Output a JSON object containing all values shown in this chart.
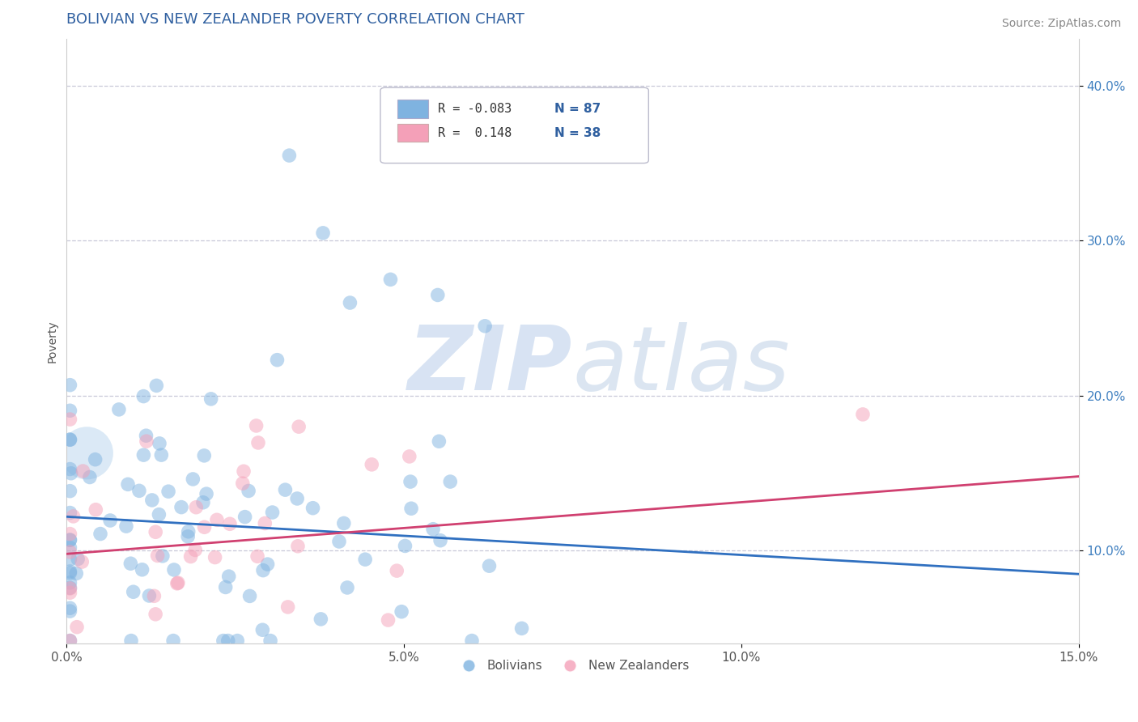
{
  "title": "BOLIVIAN VS NEW ZEALANDER POVERTY CORRELATION CHART",
  "source_text": "Source: ZipAtlas.com",
  "ylabel": "Poverty",
  "xlim": [
    0.0,
    0.15
  ],
  "ylim": [
    0.04,
    0.43
  ],
  "xticks": [
    0.0,
    0.05,
    0.1,
    0.15
  ],
  "xtick_labels": [
    "0.0%",
    "5.0%",
    "10.0%",
    "15.0%"
  ],
  "yticks": [
    0.1,
    0.2,
    0.3,
    0.4
  ],
  "ytick_labels": [
    "10.0%",
    "20.0%",
    "30.0%",
    "40.0%"
  ],
  "bolivian_color": "#7fb3e0",
  "nz_color": "#f4a0b8",
  "blue_line_color": "#3070c0",
  "pink_line_color": "#d04070",
  "title_color": "#3060a0",
  "axis_tick_color": "#4080c0",
  "watermark_zip": "ZIP",
  "watermark_atlas": "atlas",
  "background_color": "#ffffff",
  "bolivian_R": -0.083,
  "bolivian_N": 87,
  "nz_R": 0.148,
  "nz_N": 38,
  "grid_color": "#c8c8d8",
  "scatter_alpha": 0.5,
  "scatter_size": 160,
  "title_fontsize": 13,
  "axis_label_fontsize": 10,
  "tick_fontsize": 11,
  "source_fontsize": 10,
  "legend_r_bolivian": "R = -0.083",
  "legend_n_bolivian": "N = 87",
  "legend_r_nz": "R =  0.148",
  "legend_n_nz": "N = 38",
  "blue_trend_start": 0.122,
  "blue_trend_end": 0.085,
  "pink_trend_start": 0.098,
  "pink_trend_end": 0.148
}
